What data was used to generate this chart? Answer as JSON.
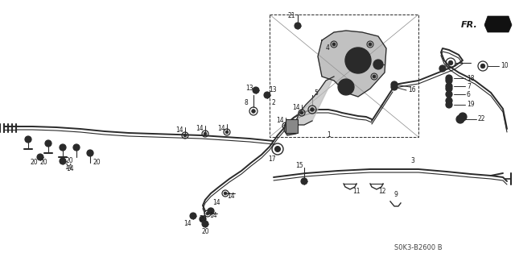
{
  "bg_color": "#ffffff",
  "line_color": "#2a2a2a",
  "text_color": "#1a1a1a",
  "fig_width": 6.4,
  "fig_height": 3.19,
  "dpi": 100,
  "watermark": "S0K3-B2600 B",
  "direction_label": "FR.",
  "gray_color": "#666666",
  "light_gray": "#aaaaaa"
}
